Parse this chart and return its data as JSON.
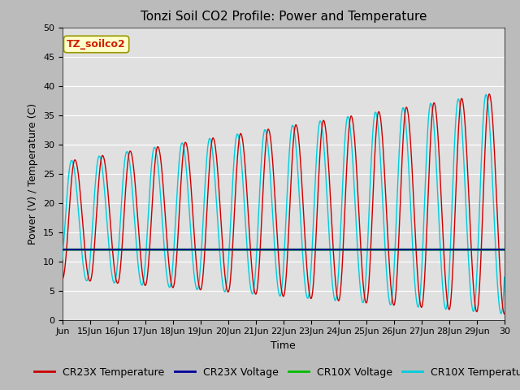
{
  "title": "Tonzi Soil CO2 Profile: Power and Temperature",
  "xlabel": "Time",
  "ylabel": "Power (V) / Temperature (C)",
  "ylim": [
    0,
    50
  ],
  "xlim": [
    0,
    16
  ],
  "x_tick_labels": [
    "Jun",
    "15Jun",
    "16Jun",
    "17Jun",
    "18Jun",
    "19Jun",
    "20Jun",
    "21Jun",
    "22Jun",
    "23Jun",
    "24Jun",
    "25Jun",
    "26Jun",
    "27Jun",
    "28Jun",
    "29Jun",
    "30"
  ],
  "annotation_text": "TZ_soilco2",
  "fig_bg_color": "#bbbbbb",
  "plot_bg_color": "#e0e0e0",
  "cr23x_temp_color": "#cc0000",
  "cr23x_volt_color": "#000099",
  "cr10x_volt_color": "#00bb00",
  "cr10x_temp_color": "#00ccdd",
  "cr23x_volt_value": 12.0,
  "cr10x_volt_value": 12.0,
  "total_days": 16,
  "points_per_day": 96,
  "title_fontsize": 11,
  "axis_fontsize": 9,
  "tick_fontsize": 8,
  "legend_fontsize": 9
}
